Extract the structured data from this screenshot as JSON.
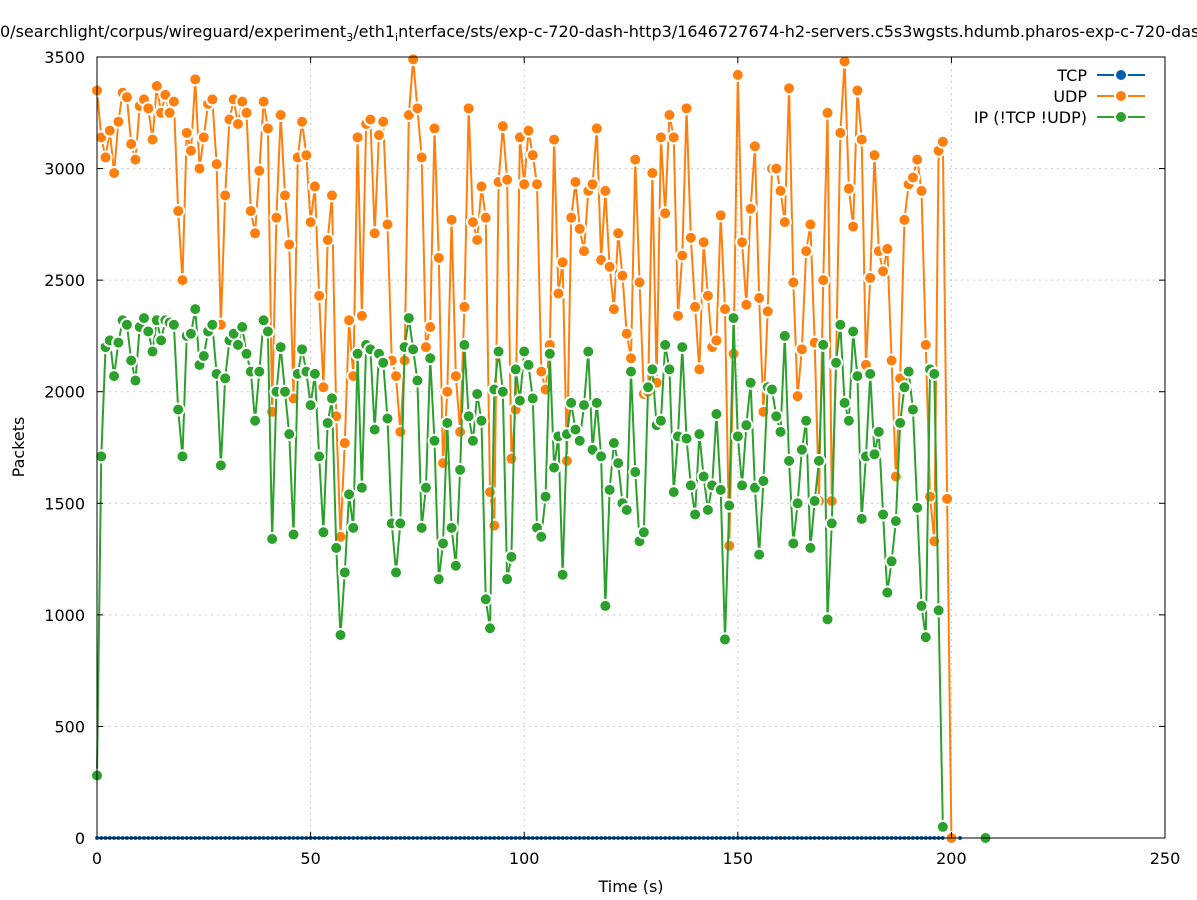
{
  "chart_data": {
    "type": "line",
    "title_parts": [
      "0/searchlight/corpus/wireguard/experiment",
      "3",
      "/eth1",
      "i",
      "nterface/sts/exp-c-720-dash-http3/1646727674-h2-servers.c5s3wgsts.hdumb.pharos-exp-c-720-das"
    ],
    "xlabel": "Time (s)",
    "ylabel": "Packets",
    "xlim": [
      0,
      250
    ],
    "ylim": [
      0,
      3500
    ],
    "xticks": [
      "0",
      "50",
      "100",
      "150",
      "200",
      "250"
    ],
    "yticks": [
      "0",
      "500",
      "1000",
      "1500",
      "2000",
      "2500",
      "3000",
      "3500"
    ],
    "grid": true,
    "legend_position": "top-right",
    "series": [
      {
        "name": "TCP",
        "color": "#0060ad",
        "x_start": 0,
        "x_step": 1,
        "values": [
          0,
          0,
          0,
          0,
          0,
          0,
          0,
          0,
          0,
          0,
          0,
          0,
          0,
          0,
          0,
          0,
          0,
          0,
          0,
          0,
          0,
          0,
          0,
          0,
          0,
          0,
          0,
          0,
          0,
          0,
          0,
          0,
          0,
          0,
          0,
          0,
          0,
          0,
          0,
          0,
          0,
          0,
          0,
          0,
          0,
          0,
          0,
          0,
          0,
          0,
          0,
          0,
          0,
          0,
          0,
          0,
          0,
          0,
          0,
          0,
          0,
          0,
          0,
          0,
          0,
          0,
          0,
          0,
          0,
          0,
          0,
          0,
          0,
          0,
          0,
          0,
          0,
          0,
          0,
          0,
          0,
          0,
          0,
          0,
          0,
          0,
          0,
          0,
          0,
          0,
          0,
          0,
          0,
          0,
          0,
          0,
          0,
          0,
          0,
          0,
          0,
          0,
          0,
          0,
          0,
          0,
          0,
          0,
          0,
          0,
          0,
          0,
          0,
          0,
          0,
          0,
          0,
          0,
          0,
          0,
          0,
          0,
          0,
          0,
          0,
          0,
          0,
          0,
          0,
          0,
          0,
          0,
          0,
          0,
          0,
          0,
          0,
          0,
          0,
          0,
          0,
          0,
          0,
          0,
          0,
          0,
          0,
          0,
          0,
          0,
          0,
          0,
          0,
          0,
          0,
          0,
          0,
          0,
          0,
          0,
          0,
          0,
          0,
          0,
          0,
          0,
          0,
          0,
          0,
          0,
          0,
          0,
          0,
          0,
          0,
          0,
          0,
          0,
          0,
          0,
          0,
          0,
          0,
          0,
          0,
          0,
          0,
          0,
          0,
          0,
          0,
          0,
          0,
          0,
          0,
          0,
          0,
          0,
          0,
          0,
          0,
          0,
          0
        ]
      },
      {
        "name": "UDP",
        "color": "#ff7f0e",
        "x_start": 0,
        "x_step": 1,
        "values": [
          3350,
          3140,
          3050,
          3170,
          2980,
          3210,
          3340,
          3320,
          3110,
          3040,
          3280,
          3310,
          3270,
          3130,
          3370,
          3250,
          3330,
          3250,
          3300,
          2810,
          2500,
          3160,
          3080,
          3400,
          3000,
          3140,
          3290,
          3310,
          3020,
          2300,
          2880,
          3220,
          3310,
          3200,
          3300,
          3250,
          2810,
          2710,
          2990,
          3300,
          3180,
          1910,
          2780,
          3240,
          2880,
          2660,
          1970,
          3050,
          3210,
          3060,
          2760,
          2920,
          2430,
          2020,
          2680,
          2880,
          1890,
          1350,
          1770,
          2320,
          2070,
          3140,
          2340,
          3200,
          3220,
          2710,
          3150,
          3210,
          2750,
          2140,
          2070,
          1820,
          2140,
          3240,
          3490,
          3270,
          3050,
          2200,
          2290,
          3180,
          2600,
          1680,
          2000,
          2770,
          2070,
          1820,
          2380,
          3270,
          2760,
          2680,
          2920,
          2780,
          1550,
          1400,
          2940,
          3190,
          2950,
          1700,
          1920,
          3140,
          2930,
          3170,
          3060,
          2930,
          2090,
          2010,
          2210,
          3130,
          2440,
          2580,
          1690,
          2780,
          2940,
          2730,
          2630,
          2900,
          2930,
          3180,
          2590,
          2900,
          2560,
          2370,
          2710,
          2520,
          2260,
          2150,
          3040,
          2490,
          1990,
          2000,
          2980,
          2040,
          3140,
          2800,
          3240,
          3140,
          2340,
          2610,
          3270,
          2690,
          2380,
          2100,
          2670,
          2430,
          2200,
          2230,
          2790,
          2370,
          1310,
          2170,
          3420,
          2670,
          2390,
          2820,
          3100,
          2420,
          1910,
          2360,
          3000,
          3000,
          2900,
          2760,
          3360,
          2490,
          1980,
          2190,
          2630,
          2750,
          2220,
          1510,
          2500,
          3250,
          1510,
          2120,
          3160,
          3480,
          2910,
          2740,
          3350,
          3130,
          2120,
          2510,
          3060,
          2630,
          2540,
          2640,
          2140,
          1620,
          2060,
          2770,
          2930,
          2960,
          3040,
          2900,
          2210,
          1530,
          1330,
          3080,
          3120,
          1520,
          0
        ]
      },
      {
        "name": "IP (!TCP  !UDP)",
        "color": "#2ca02c",
        "x_start": 0,
        "x_step": 1,
        "values": [
          280,
          1710,
          2200,
          2230,
          2070,
          2220,
          2320,
          2300,
          2140,
          2050,
          2290,
          2330,
          2270,
          2180,
          2320,
          2230,
          2320,
          2310,
          2300,
          1920,
          1710,
          2250,
          2260,
          2370,
          2120,
          2160,
          2270,
          2300,
          2080,
          1670,
          2060,
          2230,
          2260,
          2210,
          2290,
          2170,
          2090,
          1870,
          2090,
          2320,
          2270,
          1340,
          2000,
          2200,
          2000,
          1810,
          1360,
          2080,
          2190,
          2090,
          1940,
          2080,
          1710,
          1370,
          1860,
          1970,
          1300,
          910,
          1190,
          1540,
          1390,
          2170,
          1570,
          2210,
          2190,
          1830,
          2170,
          2130,
          1880,
          1410,
          1190,
          1410,
          2200,
          2330,
          2190,
          2050,
          1390,
          1570,
          2150,
          1780,
          1160,
          1320,
          1860,
          1390,
          1220,
          1650,
          2210,
          1890,
          1780,
          1990,
          1870,
          1070,
          940,
          2010,
          2180,
          2000,
          1160,
          1260,
          2100,
          1960,
          2180,
          2120,
          1970,
          1390,
          1350,
          1530,
          2170,
          1660,
          1800,
          1180,
          1810,
          1950,
          1830,
          1780,
          1940,
          2180,
          1740,
          1950,
          1710,
          1040,
          1560,
          1770,
          1680,
          1500,
          1470,
          2090,
          1640,
          1330,
          1370,
          2020,
          2100,
          1850,
          1870,
          2210,
          2100,
          1550,
          1800,
          2200,
          1790,
          1580,
          1450,
          1810,
          1620,
          1470,
          1580,
          1900,
          1560,
          890,
          1490,
          2330,
          1800,
          1580,
          1850,
          2040,
          1570,
          1270,
          1600,
          2020,
          2010,
          1890,
          1820,
          2250,
          1690,
          1320,
          1500,
          1740,
          1870,
          1300,
          1510,
          1690,
          2210,
          980,
          1410,
          2130,
          2300,
          1950,
          1870,
          2270,
          2070,
          1430,
          1710,
          2080,
          1720,
          1820,
          1450,
          1100,
          1240,
          1420,
          1860,
          2020,
          2090,
          1920,
          1480,
          1040,
          900,
          2100,
          2080,
          1020,
          50
        ],
        "extra_points": [
          [
            208,
            0
          ]
        ]
      }
    ]
  }
}
